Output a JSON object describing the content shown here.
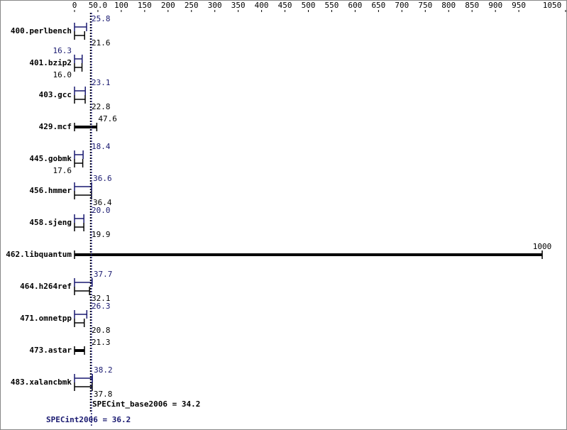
{
  "chart_data": {
    "type": "bar",
    "orientation": "horizontal",
    "categories": [
      "400.perlbench",
      "401.bzip2",
      "403.gcc",
      "429.mcf",
      "445.gobmk",
      "456.hmmer",
      "458.sjeng",
      "462.libquantum",
      "464.h264ref",
      "471.omnetpp",
      "473.astar",
      "483.xalancbmk"
    ],
    "series": [
      {
        "name": "SPECint2006",
        "color": "#191970",
        "values": [
          25.8,
          16.3,
          23.1,
          null,
          18.4,
          36.6,
          20.0,
          null,
          37.7,
          26.3,
          null,
          38.2
        ],
        "value_labels": [
          "25.8",
          "16.3",
          "23.1",
          null,
          "18.4",
          "36.6",
          "20.0",
          null,
          "37.7",
          "26.3",
          null,
          "38.2"
        ]
      },
      {
        "name": "SPECint_base2006",
        "color": "#000000",
        "values": [
          21.6,
          16.0,
          22.8,
          47.6,
          17.6,
          36.4,
          19.9,
          1000,
          32.1,
          20.8,
          21.3,
          37.8
        ],
        "value_labels": [
          "21.6",
          "16.0",
          "22.8",
          "47.6",
          "17.6",
          "36.4",
          "19.9",
          "1000",
          "32.1",
          "20.8",
          "21.3",
          "37.8"
        ]
      }
    ],
    "xlim": [
      0,
      1050
    ],
    "xticks": [
      0,
      {
        "value": 50,
        "label": "50.0"
      },
      100,
      150,
      200,
      250,
      300,
      350,
      400,
      450,
      500,
      550,
      600,
      650,
      700,
      750,
      800,
      850,
      900,
      950,
      1050
    ],
    "reference_lines": [
      {
        "label": "SPECint_base2006 = 34.2",
        "value": 34.2,
        "color": "#000000"
      },
      {
        "label": "SPECint2006 = 36.2",
        "value": 36.2,
        "color": "#191970"
      }
    ]
  }
}
